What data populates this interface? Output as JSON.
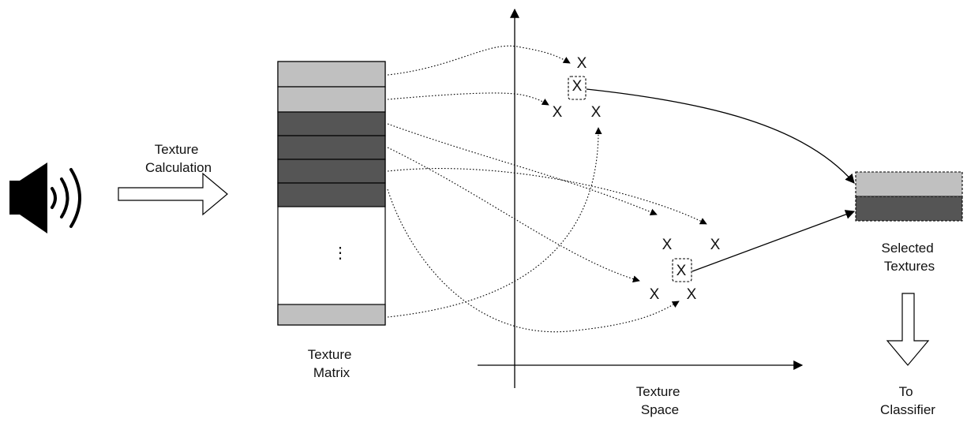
{
  "labels": {
    "texture_calculation": [
      "Texture",
      "Calculation"
    ],
    "texture_matrix": [
      "Texture",
      "Matrix"
    ],
    "texture_space": [
      "Texture",
      "Space"
    ],
    "selected_textures": [
      "Selected",
      "Textures"
    ],
    "to_classifier": [
      "To",
      "Classifier"
    ],
    "ellipsis": "⋮",
    "point_marker": "X"
  },
  "colors": {
    "light_texture": "#c0c0c0",
    "dark_texture": "#555555",
    "stroke": "#000000"
  },
  "icon": "speaker-icon"
}
